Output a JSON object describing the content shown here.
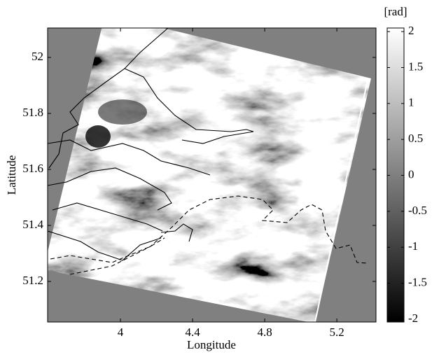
{
  "chart_data": {
    "type": "image",
    "xlabel": "Longitude",
    "ylabel": "Latitude",
    "xlim": [
      3.596,
      5.417
    ],
    "ylim": [
      51.055,
      52.105
    ],
    "xticks": [
      4,
      4.4,
      4.8,
      5.2
    ],
    "yticks": [
      51.2,
      51.4,
      51.6,
      51.8,
      52
    ],
    "colormap": "gray",
    "colorbar": {
      "label": "[rad]",
      "lim": [
        -2.04,
        2.05
      ],
      "ticks": [
        -2,
        -1.5,
        -1,
        -0.5,
        0,
        0.5,
        1,
        1.5,
        2
      ]
    }
  }
}
